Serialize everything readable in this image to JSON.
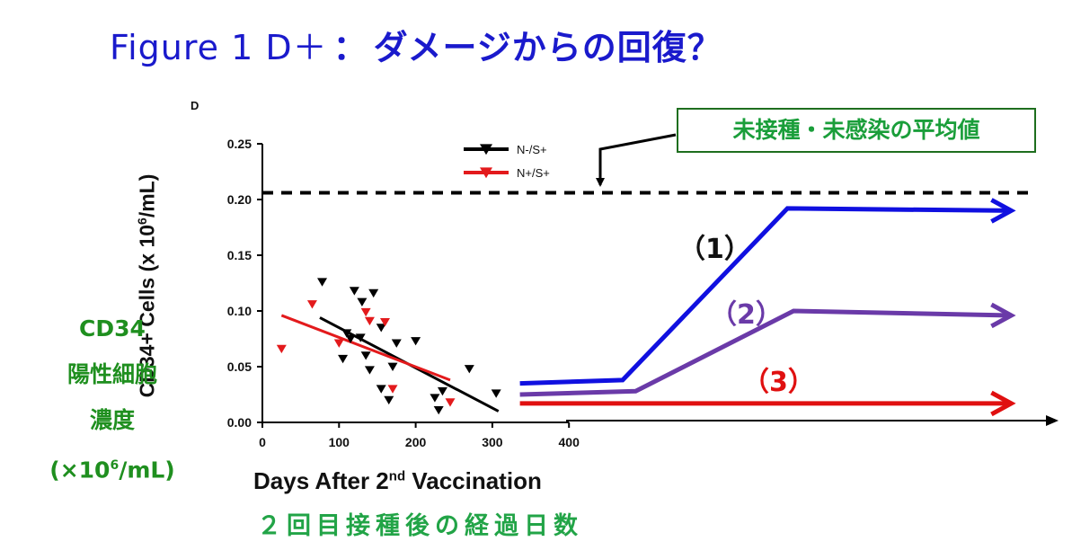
{
  "header": {
    "title_prefix": "Figure 1 D＋",
    "title_sep": "：",
    "title_jp": "ダメージからの回復？"
  },
  "panel_letter": "D",
  "callout": {
    "text": "未接種・未感染の平均値"
  },
  "y_label_jp": {
    "line1": "CD34",
    "line2": "陽性細胞",
    "line3": "濃度",
    "line4_pre": "(×10",
    "line4_sup": "6",
    "line4_post": "/mL)"
  },
  "x_label_jp": "２回目接種後の経過日数",
  "scenarios": [
    {
      "label": "（1）",
      "color": "#111111"
    },
    {
      "label": "（2）",
      "color": "#6a3aa8"
    },
    {
      "label": "（3）",
      "color": "#e01010"
    }
  ],
  "chart_data": {
    "type": "scatter",
    "title": "",
    "xlabel_pre": "Days After 2",
    "xlabel_sup": "nd",
    "xlabel_post": " Vaccination",
    "ylabel_pre": "CD34+ Cells (x 10",
    "ylabel_sup": "6",
    "ylabel_post": "/mL)",
    "xlim": [
      0,
      400
    ],
    "ylim": [
      0,
      0.25
    ],
    "x_ticks": [
      0,
      100,
      200,
      300,
      400
    ],
    "y_ticks": [
      "0.00",
      "0.05",
      "0.10",
      "0.15",
      "0.20",
      "0.25"
    ],
    "legend_position": "top",
    "series": [
      {
        "name": "N-/S+",
        "color": "#000000",
        "marker": "triangle-down",
        "points": [
          [
            78,
            0.126
          ],
          [
            120,
            0.118
          ],
          [
            130,
            0.108
          ],
          [
            145,
            0.116
          ],
          [
            110,
            0.08
          ],
          [
            115,
            0.075
          ],
          [
            128,
            0.076
          ],
          [
            155,
            0.085
          ],
          [
            135,
            0.06
          ],
          [
            105,
            0.057
          ],
          [
            175,
            0.071
          ],
          [
            200,
            0.073
          ],
          [
            140,
            0.047
          ],
          [
            170,
            0.05
          ],
          [
            155,
            0.03
          ],
          [
            165,
            0.02
          ],
          [
            225,
            0.022
          ],
          [
            235,
            0.028
          ],
          [
            230,
            0.011
          ],
          [
            270,
            0.048
          ],
          [
            305,
            0.026
          ]
        ],
        "trend": [
          [
            75,
            0.094
          ],
          [
            308,
            0.01
          ]
        ]
      },
      {
        "name": "N+/S+",
        "color": "#e31a1c",
        "marker": "triangle-down",
        "points": [
          [
            25,
            0.066
          ],
          [
            65,
            0.106
          ],
          [
            135,
            0.099
          ],
          [
            140,
            0.091
          ],
          [
            160,
            0.09
          ],
          [
            100,
            0.071
          ],
          [
            170,
            0.03
          ],
          [
            245,
            0.018
          ]
        ],
        "trend": [
          [
            25,
            0.096
          ],
          [
            245,
            0.038
          ]
        ]
      }
    ],
    "reference_line": {
      "y": 0.206,
      "style": "dashed"
    },
    "projections": [
      {
        "color": "#1010e0",
        "points": [
          [
            336,
            0.035
          ],
          [
            470,
            0.038
          ],
          [
            685,
            0.192
          ],
          [
            977,
            0.19
          ]
        ]
      },
      {
        "color": "#6a3aa8",
        "points": [
          [
            336,
            0.025
          ],
          [
            487,
            0.028
          ],
          [
            693,
            0.1
          ],
          [
            977,
            0.096
          ]
        ]
      },
      {
        "color": "#e01010",
        "points": [
          [
            336,
            0.017
          ],
          [
            977,
            0.017
          ]
        ]
      }
    ]
  }
}
